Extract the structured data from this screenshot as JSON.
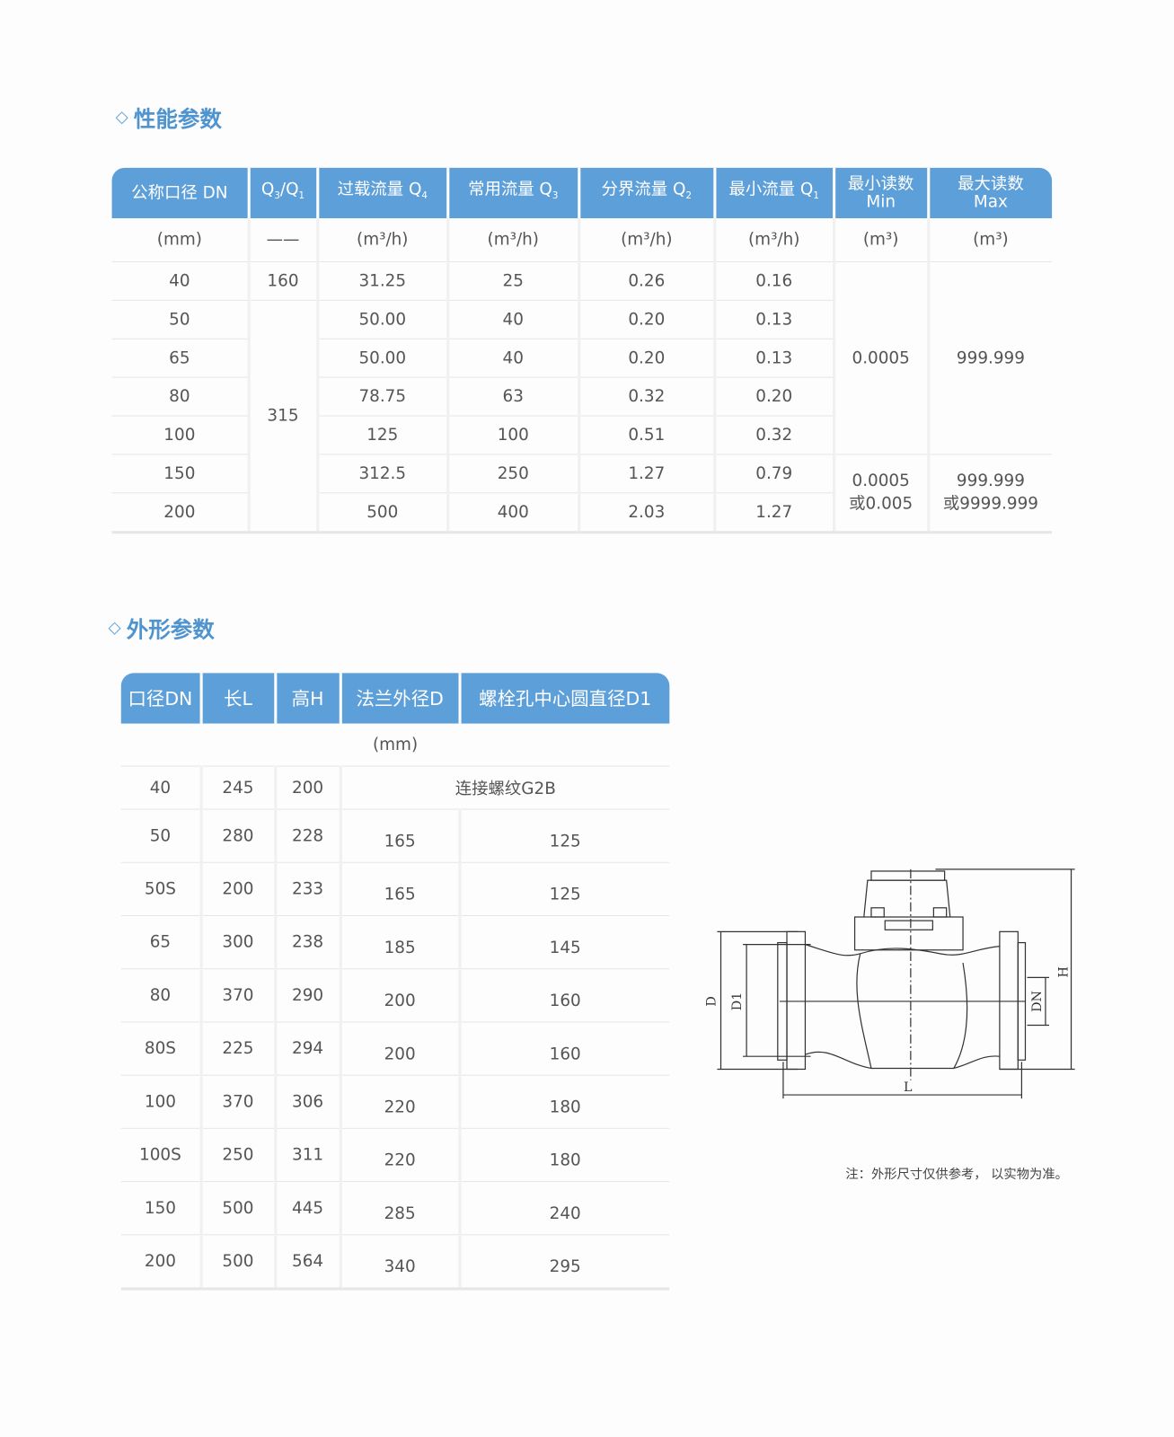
{
  "performance": {
    "title": "性能参数",
    "headers": [
      {
        "main": "公称口径 DN",
        "sub": ""
      },
      {
        "main": "Q",
        "sub": "3",
        "mid": "/Q",
        "sub2": "1"
      },
      {
        "main": "过载流量 Q",
        "sub": "4"
      },
      {
        "main": "常用流量 Q",
        "sub": "3"
      },
      {
        "main": "分界流量 Q",
        "sub": "2"
      },
      {
        "main": "最小流量 Q",
        "sub": "1"
      },
      {
        "main": "最小读数",
        "line2": "Min"
      },
      {
        "main": "最大读数",
        "line2": "Max"
      }
    ],
    "units": [
      "(mm)",
      "——",
      "(m³/h)",
      "(m³/h)",
      "(m³/h)",
      "(m³/h)",
      "(m³)",
      "(m³)"
    ],
    "rows": [
      {
        "dn": "40",
        "ratio": "160",
        "q4": "31.25",
        "q3": "25",
        "q2": "0.26",
        "q1": "0.16"
      },
      {
        "dn": "50",
        "ratio": "315",
        "q4": "50.00",
        "q3": "40",
        "q2": "0.20",
        "q1": "0.13"
      },
      {
        "dn": "65",
        "q4": "50.00",
        "q3": "40",
        "q2": "0.20",
        "q1": "0.13"
      },
      {
        "dn": "80",
        "q4": "78.75",
        "q3": "63",
        "q2": "0.32",
        "q1": "0.20"
      },
      {
        "dn": "100",
        "q4": "125",
        "q3": "100",
        "q2": "0.51",
        "q1": "0.32"
      },
      {
        "dn": "150",
        "q4": "312.5",
        "q3": "250",
        "q2": "1.27",
        "q1": "0.79"
      },
      {
        "dn": "200",
        "q4": "500",
        "q3": "400",
        "q2": "2.03",
        "q1": "1.27"
      }
    ],
    "min_reading": {
      "small": "0.0005",
      "large_1": "0.0005",
      "large_2": "或0.005"
    },
    "max_reading": {
      "small": "999.999",
      "large_1": "999.999",
      "large_2": "或9999.999"
    }
  },
  "dimensions": {
    "title": "外形参数",
    "headers": [
      "口径DN",
      "长L",
      "高H",
      "法兰外径D",
      "螺栓孔中心圆直径D1"
    ],
    "unit": "(mm)",
    "thread_note": "连接螺纹G2B",
    "rows": [
      {
        "dn": "40",
        "l": "245",
        "h": "200"
      },
      {
        "dn": "50",
        "l": "280",
        "h": "228",
        "d": "165",
        "d1": "125"
      },
      {
        "dn": "50S",
        "l": "200",
        "h": "233",
        "d": "165",
        "d1": "125"
      },
      {
        "dn": "65",
        "l": "300",
        "h": "238",
        "d": "185",
        "d1": "145"
      },
      {
        "dn": "80",
        "l": "370",
        "h": "290",
        "d": "200",
        "d1": "160"
      },
      {
        "dn": "80S",
        "l": "225",
        "h": "294",
        "d": "200",
        "d1": "160"
      },
      {
        "dn": "100",
        "l": "370",
        "h": "306",
        "d": "220",
        "d1": "180"
      },
      {
        "dn": "100S",
        "l": "250",
        "h": "311",
        "d": "220",
        "d1": "180"
      },
      {
        "dn": "150",
        "l": "500",
        "h": "445",
        "d": "285",
        "d1": "240"
      },
      {
        "dn": "200",
        "l": "500",
        "h": "564",
        "d": "340",
        "d1": "295"
      }
    ],
    "diagram_labels": {
      "d": "D",
      "d1": "D1",
      "dn": "DN",
      "h": "H",
      "l": "L"
    },
    "note": "注：外形尺寸仅供参考， 以实物为准。"
  },
  "colors": {
    "header_bg": "#5d9fd9",
    "title": "#4f94cf"
  }
}
